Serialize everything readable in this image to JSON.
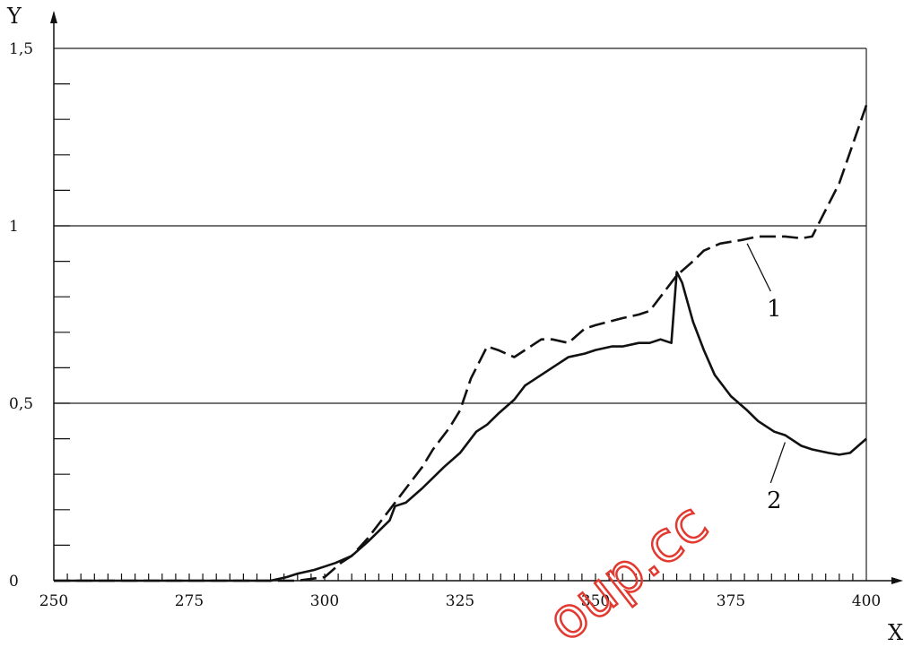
{
  "chart_data": {
    "type": "line",
    "xlabel": "X",
    "ylabel": "Y",
    "xlim": [
      250,
      400
    ],
    "ylim": [
      0,
      1.5
    ],
    "x_ticks": [
      {
        "value": 250,
        "label": "250"
      },
      {
        "value": 275,
        "label": "275"
      },
      {
        "value": 300,
        "label": "300"
      },
      {
        "value": 325,
        "label": "325"
      },
      {
        "value": 350,
        "label": "350"
      },
      {
        "value": 375,
        "label": "375"
      },
      {
        "value": 400,
        "label": "400"
      }
    ],
    "y_ticks": [
      {
        "value": 0,
        "label": "0"
      },
      {
        "value": 0.5,
        "label": "0,5"
      },
      {
        "value": 1,
        "label": "1"
      },
      {
        "value": 1.5,
        "label": "1,5"
      }
    ],
    "x_minor_step": 2.5,
    "y_minor_step": 0.1,
    "grid_lines_y": [
      0.5,
      1,
      1.5
    ],
    "series": [
      {
        "name": "1",
        "style": "dashed",
        "label_anchor": {
          "x": 378,
          "y": 0.95
        },
        "label_pos": {
          "x": 383,
          "y": 0.78
        },
        "points": [
          [
            250,
            0
          ],
          [
            290,
            0
          ],
          [
            295,
            0
          ],
          [
            300,
            0.01
          ],
          [
            303,
            0.05
          ],
          [
            305,
            0.07
          ],
          [
            308,
            0.12
          ],
          [
            310,
            0.16
          ],
          [
            313,
            0.22
          ],
          [
            315,
            0.26
          ],
          [
            318,
            0.32
          ],
          [
            320,
            0.37
          ],
          [
            323,
            0.43
          ],
          [
            325,
            0.48
          ],
          [
            327,
            0.57
          ],
          [
            330,
            0.66
          ],
          [
            332,
            0.65
          ],
          [
            335,
            0.63
          ],
          [
            337,
            0.65
          ],
          [
            340,
            0.68
          ],
          [
            342,
            0.68
          ],
          [
            345,
            0.67
          ],
          [
            348,
            0.71
          ],
          [
            350,
            0.72
          ],
          [
            355,
            0.74
          ],
          [
            358,
            0.75
          ],
          [
            360,
            0.76
          ],
          [
            363,
            0.82
          ],
          [
            365,
            0.86
          ],
          [
            368,
            0.9
          ],
          [
            370,
            0.93
          ],
          [
            373,
            0.95
          ],
          [
            377,
            0.96
          ],
          [
            380,
            0.97
          ],
          [
            385,
            0.97
          ],
          [
            388,
            0.965
          ],
          [
            390,
            0.97
          ],
          [
            395,
            1.12
          ],
          [
            400,
            1.34
          ]
        ]
      },
      {
        "name": "2",
        "style": "solid",
        "label_anchor": {
          "x": 385,
          "y": 0.39
        },
        "label_pos": {
          "x": 383,
          "y": 0.24
        },
        "points": [
          [
            250,
            0
          ],
          [
            290,
            0
          ],
          [
            293,
            0.01
          ],
          [
            295,
            0.02
          ],
          [
            298,
            0.03
          ],
          [
            300,
            0.04
          ],
          [
            302,
            0.05
          ],
          [
            305,
            0.07
          ],
          [
            308,
            0.11
          ],
          [
            310,
            0.14
          ],
          [
            312,
            0.17
          ],
          [
            313,
            0.21
          ],
          [
            315,
            0.22
          ],
          [
            318,
            0.26
          ],
          [
            320,
            0.29
          ],
          [
            322,
            0.32
          ],
          [
            325,
            0.36
          ],
          [
            328,
            0.42
          ],
          [
            330,
            0.44
          ],
          [
            332,
            0.47
          ],
          [
            335,
            0.51
          ],
          [
            337,
            0.55
          ],
          [
            340,
            0.58
          ],
          [
            343,
            0.61
          ],
          [
            345,
            0.63
          ],
          [
            348,
            0.64
          ],
          [
            350,
            0.65
          ],
          [
            353,
            0.66
          ],
          [
            355,
            0.66
          ],
          [
            358,
            0.67
          ],
          [
            360,
            0.67
          ],
          [
            362,
            0.68
          ],
          [
            364,
            0.67
          ],
          [
            365,
            0.87
          ],
          [
            366,
            0.84
          ],
          [
            368,
            0.73
          ],
          [
            370,
            0.65
          ],
          [
            372,
            0.58
          ],
          [
            375,
            0.52
          ],
          [
            378,
            0.48
          ],
          [
            380,
            0.45
          ],
          [
            383,
            0.42
          ],
          [
            385,
            0.41
          ],
          [
            388,
            0.38
          ],
          [
            390,
            0.37
          ],
          [
            393,
            0.36
          ],
          [
            395,
            0.355
          ],
          [
            397,
            0.36
          ],
          [
            400,
            0.4
          ]
        ]
      }
    ]
  },
  "watermark": {
    "text": "oup.cc",
    "color": "#e23a30"
  }
}
